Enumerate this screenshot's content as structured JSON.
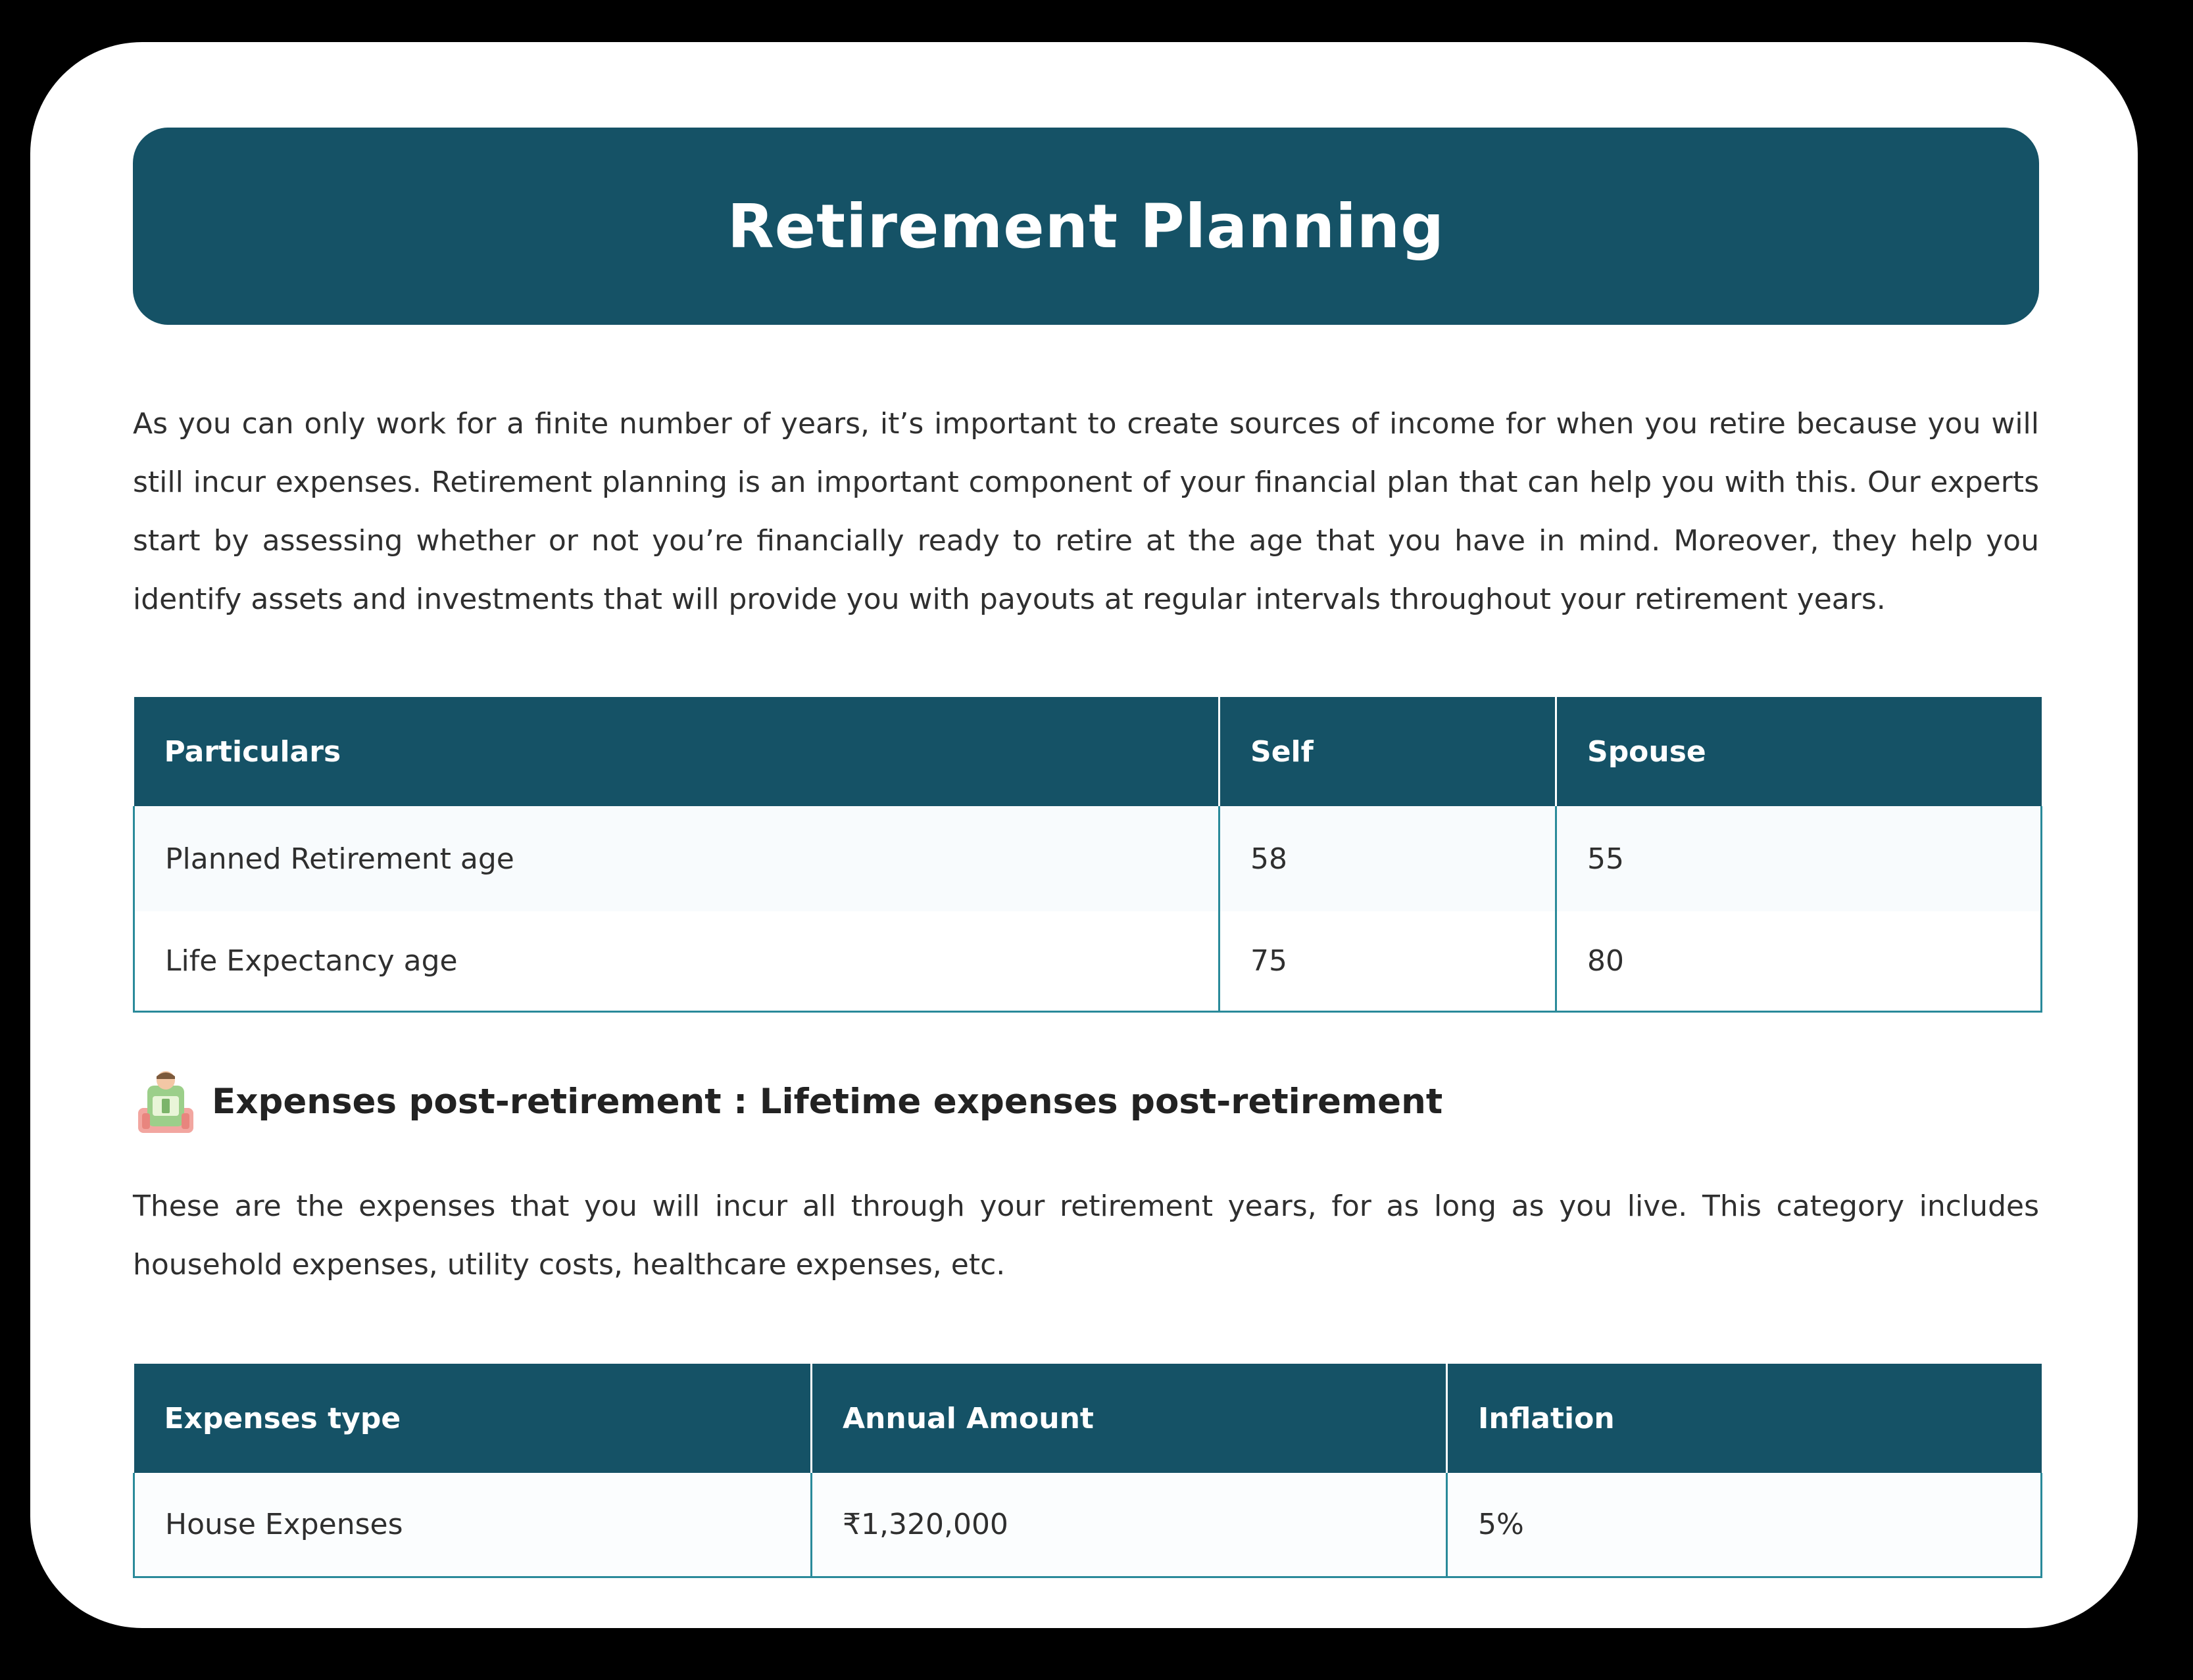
{
  "colors": {
    "header_bg": "#155266",
    "table_border": "#2a8a9a",
    "frame": "#000000"
  },
  "title": "Retirement Planning",
  "intro": "As you can only work for a finite number of years, it’s important to create sources of income for when you retire because you will still incur expenses. Retirement planning is an important component of your financial plan that can help you with this. Our experts start by assessing whether or not you’re financially ready to retire at the age that you have in mind. Moreover, they help you identify assets and investments that will provide you with payouts at regular intervals throughout your retirement years.",
  "retirement_table": {
    "headers": [
      "Particulars",
      "Self",
      "Spouse"
    ],
    "rows": [
      [
        "Planned Retirement age",
        "58",
        "55"
      ],
      [
        "Life Expectancy age",
        "75",
        "80"
      ]
    ]
  },
  "expenses_section": {
    "icon": "retirement-person-icon",
    "title": "Expenses post-retirement : Lifetime expenses post-retirement",
    "description": "These are the expenses that you will incur all through your retirement years, for as long as you live. This category includes household expenses, utility costs, healthcare expenses, etc."
  },
  "expenses_table": {
    "headers": [
      "Expenses type",
      "Annual Amount",
      "Inflation"
    ],
    "rows": [
      [
        "House Expenses",
        "₹1,320,000",
        "5%"
      ]
    ]
  }
}
